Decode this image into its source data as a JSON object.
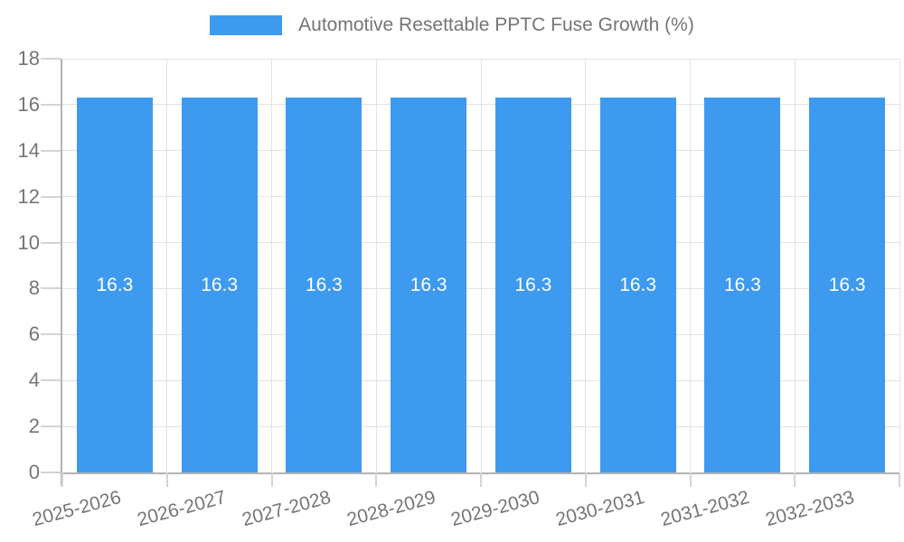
{
  "colors": {
    "bar": "#3E9AEE",
    "grid": "#E2E2E2",
    "axis": "#B3B3B3",
    "tick": "#D4D4D4",
    "text": "#757575",
    "bar_label": "#FFFFFF",
    "background": "#FFFFFF"
  },
  "legend": {
    "label": "Automotive Resettable PPTC Fuse Growth (%)"
  },
  "chart_data": {
    "type": "bar",
    "title": "Automotive Resettable PPTC Fuse Growth (%)",
    "categories": [
      "2025-2026",
      "2026-2027",
      "2027-2028",
      "2028-2029",
      "2029-2030",
      "2030-2031",
      "2031-2032",
      "2032-2033"
    ],
    "values": [
      16.3,
      16.3,
      16.3,
      16.3,
      16.3,
      16.3,
      16.3,
      16.3
    ],
    "value_labels": [
      "16.3",
      "16.3",
      "16.3",
      "16.3",
      "16.3",
      "16.3",
      "16.3",
      "16.3"
    ],
    "xlabel": "",
    "ylabel": "",
    "ylim": [
      0,
      18
    ],
    "ytick_step": 2,
    "ytick_labels": [
      "0",
      "2",
      "4",
      "6",
      "8",
      "10",
      "12",
      "14",
      "16",
      "18"
    ],
    "grid": true,
    "legend_position": "top-center",
    "x_label_rotation_deg": -15
  }
}
